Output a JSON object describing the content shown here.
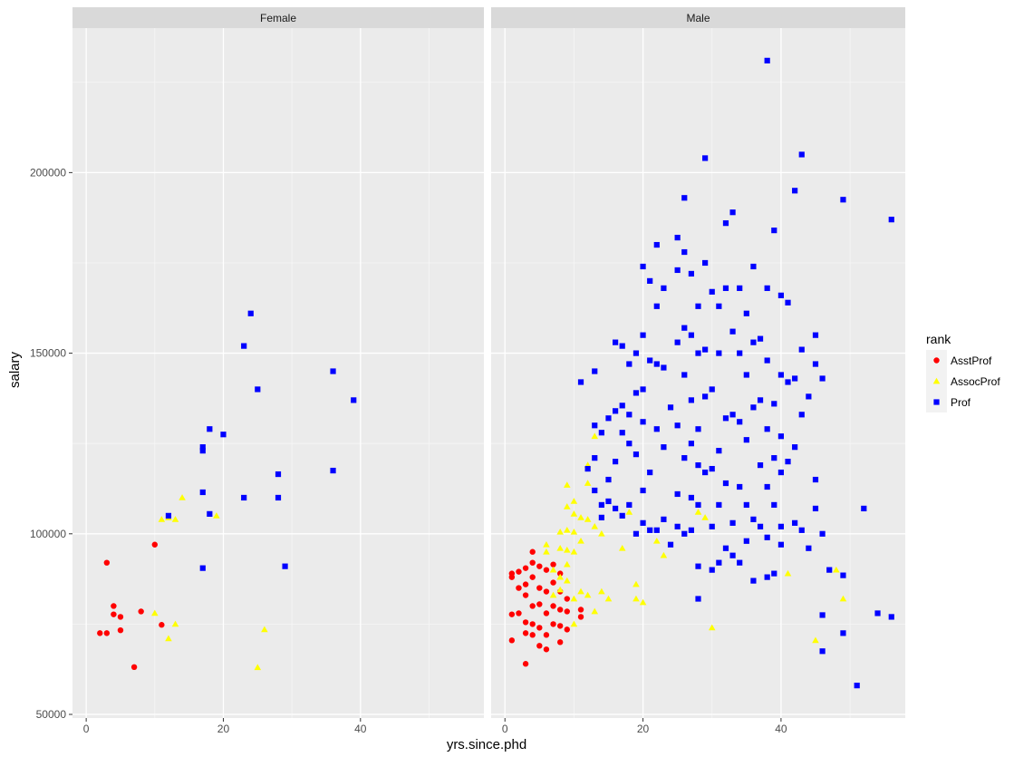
{
  "chart_data": {
    "type": "scatter",
    "title": "",
    "xlabel": "yrs.since.phd",
    "ylabel": "salary",
    "xlim": [
      -2,
      58
    ],
    "ylim": [
      49000,
      240000
    ],
    "x_ticks": [
      0,
      20,
      40
    ],
    "x_tick_labels": [
      "0",
      "20",
      "40"
    ],
    "y_ticks": [
      50000,
      100000,
      150000,
      200000
    ],
    "y_tick_labels": [
      "50000",
      "100000",
      "150000",
      "200000"
    ],
    "grid": true,
    "legend_position": "right",
    "legend_title": "rank",
    "panels": [
      "Female",
      "Male"
    ],
    "series": [
      {
        "name": "AsstProf",
        "color": "#ff0000",
        "shape": "circle"
      },
      {
        "name": "AssocProf",
        "color": "#ffff00",
        "shape": "triangle"
      },
      {
        "name": "Prof",
        "color": "#0000ff",
        "shape": "square"
      }
    ],
    "points": {
      "Female": {
        "AsstProf": [
          [
            2,
            72500
          ],
          [
            3,
            72500
          ],
          [
            3,
            92000
          ],
          [
            4,
            80000
          ],
          [
            4,
            77700
          ],
          [
            5,
            77000
          ],
          [
            5,
            73300
          ],
          [
            7,
            63100
          ],
          [
            8,
            78500
          ],
          [
            10,
            97000
          ],
          [
            11,
            74800
          ]
        ],
        "AssocProf": [
          [
            10,
            78000
          ],
          [
            11,
            104000
          ],
          [
            12,
            104500
          ],
          [
            12,
            71000
          ],
          [
            13,
            104000
          ],
          [
            13,
            75000
          ],
          [
            14,
            110000
          ],
          [
            19,
            105000
          ],
          [
            25,
            63000
          ],
          [
            26,
            73500
          ]
        ],
        "Prof": [
          [
            12,
            105000
          ],
          [
            17,
            124000
          ],
          [
            17,
            123000
          ],
          [
            17,
            111500
          ],
          [
            17,
            90500
          ],
          [
            18,
            129000
          ],
          [
            18,
            105500
          ],
          [
            20,
            127500
          ],
          [
            23,
            152000
          ],
          [
            23,
            110000
          ],
          [
            24,
            161000
          ],
          [
            25,
            140000
          ],
          [
            28,
            116500
          ],
          [
            28,
            110000
          ],
          [
            29,
            91000
          ],
          [
            36,
            145000
          ],
          [
            36,
            117500
          ],
          [
            39,
            137000
          ]
        ]
      },
      "Male": {
        "AsstProf": [
          [
            1,
            88000
          ],
          [
            1,
            77700
          ],
          [
            1,
            70500
          ],
          [
            1,
            89000
          ],
          [
            2,
            78000
          ],
          [
            2,
            89500
          ],
          [
            2,
            85000
          ],
          [
            3,
            64000
          ],
          [
            3,
            75500
          ],
          [
            3,
            72500
          ],
          [
            3,
            83000
          ],
          [
            3,
            86000
          ],
          [
            3,
            90500
          ],
          [
            4,
            95000
          ],
          [
            4,
            92000
          ],
          [
            4,
            88000
          ],
          [
            4,
            80000
          ],
          [
            4,
            75000
          ],
          [
            4,
            72000
          ],
          [
            5,
            91000
          ],
          [
            5,
            85000
          ],
          [
            5,
            80500
          ],
          [
            5,
            74000
          ],
          [
            5,
            69000
          ],
          [
            6,
            90000
          ],
          [
            6,
            84000
          ],
          [
            6,
            78000
          ],
          [
            6,
            72000
          ],
          [
            6,
            68000
          ],
          [
            7,
            91500
          ],
          [
            7,
            86500
          ],
          [
            7,
            80000
          ],
          [
            7,
            75000
          ],
          [
            8,
            89000
          ],
          [
            8,
            84000
          ],
          [
            8,
            79000
          ],
          [
            8,
            74500
          ],
          [
            8,
            70000
          ],
          [
            9,
            73500
          ],
          [
            9,
            78500
          ],
          [
            9,
            82000
          ],
          [
            11,
            77000
          ],
          [
            11,
            79000
          ]
        ],
        "AssocProf": [
          [
            6,
            97000
          ],
          [
            6,
            95000
          ],
          [
            7,
            90000
          ],
          [
            7,
            83000
          ],
          [
            8,
            100500
          ],
          [
            8,
            96000
          ],
          [
            8,
            88000
          ],
          [
            8,
            84500
          ],
          [
            9,
            113500
          ],
          [
            9,
            107500
          ],
          [
            9,
            101000
          ],
          [
            9,
            95500
          ],
          [
            9,
            91500
          ],
          [
            9,
            87000
          ],
          [
            10,
            109000
          ],
          [
            10,
            105500
          ],
          [
            10,
            100500
          ],
          [
            10,
            95000
          ],
          [
            10,
            82000
          ],
          [
            10,
            75000
          ],
          [
            11,
            104500
          ],
          [
            11,
            98000
          ],
          [
            11,
            84000
          ],
          [
            12,
            119000
          ],
          [
            12,
            114000
          ],
          [
            12,
            104000
          ],
          [
            12,
            83000
          ],
          [
            13,
            127000
          ],
          [
            13,
            102000
          ],
          [
            13,
            78500
          ],
          [
            14,
            100000
          ],
          [
            14,
            84000
          ],
          [
            15,
            82000
          ],
          [
            17,
            96000
          ],
          [
            18,
            106000
          ],
          [
            19,
            86000
          ],
          [
            19,
            82000
          ],
          [
            20,
            81000
          ],
          [
            22,
            98000
          ],
          [
            23,
            94000
          ],
          [
            28,
            106000
          ],
          [
            29,
            104500
          ],
          [
            30,
            74000
          ],
          [
            41,
            89000
          ],
          [
            45,
            70500
          ],
          [
            48,
            90000
          ],
          [
            49,
            82000
          ]
        ],
        "Prof": [
          [
            11,
            142000
          ],
          [
            12,
            118000
          ],
          [
            13,
            145000
          ],
          [
            13,
            130000
          ],
          [
            13,
            121000
          ],
          [
            13,
            112000
          ],
          [
            14,
            128000
          ],
          [
            14,
            108000
          ],
          [
            14,
            104500
          ],
          [
            15,
            132000
          ],
          [
            15,
            115000
          ],
          [
            15,
            109000
          ],
          [
            16,
            153000
          ],
          [
            16,
            134000
          ],
          [
            16,
            120000
          ],
          [
            16,
            107000
          ],
          [
            17,
            152000
          ],
          [
            17,
            135500
          ],
          [
            17,
            128000
          ],
          [
            17,
            105000
          ],
          [
            18,
            147000
          ],
          [
            18,
            133000
          ],
          [
            18,
            125000
          ],
          [
            18,
            108000
          ],
          [
            19,
            150000
          ],
          [
            19,
            139000
          ],
          [
            19,
            122000
          ],
          [
            19,
            100000
          ],
          [
            20,
            174000
          ],
          [
            20,
            155000
          ],
          [
            20,
            140000
          ],
          [
            20,
            131000
          ],
          [
            20,
            112000
          ],
          [
            20,
            103000
          ],
          [
            21,
            170000
          ],
          [
            21,
            148000
          ],
          [
            21,
            117000
          ],
          [
            21,
            101000
          ],
          [
            22,
            180000
          ],
          [
            22,
            163000
          ],
          [
            22,
            147000
          ],
          [
            22,
            129000
          ],
          [
            22,
            101000
          ],
          [
            23,
            168000
          ],
          [
            23,
            146000
          ],
          [
            23,
            124000
          ],
          [
            23,
            104000
          ],
          [
            24,
            135000
          ],
          [
            24,
            97000
          ],
          [
            25,
            182000
          ],
          [
            25,
            173000
          ],
          [
            25,
            153000
          ],
          [
            25,
            130000
          ],
          [
            25,
            111000
          ],
          [
            25,
            102000
          ],
          [
            26,
            193000
          ],
          [
            26,
            178000
          ],
          [
            26,
            157000
          ],
          [
            26,
            144000
          ],
          [
            26,
            121000
          ],
          [
            26,
            100000
          ],
          [
            27,
            172000
          ],
          [
            27,
            155000
          ],
          [
            27,
            137000
          ],
          [
            27,
            125000
          ],
          [
            27,
            110000
          ],
          [
            27,
            101000
          ],
          [
            28,
            163000
          ],
          [
            28,
            150000
          ],
          [
            28,
            129000
          ],
          [
            28,
            119000
          ],
          [
            28,
            108000
          ],
          [
            28,
            91000
          ],
          [
            28,
            82000
          ],
          [
            29,
            204000
          ],
          [
            29,
            175000
          ],
          [
            29,
            151000
          ],
          [
            29,
            138000
          ],
          [
            29,
            117000
          ],
          [
            30,
            167000
          ],
          [
            30,
            140000
          ],
          [
            30,
            118000
          ],
          [
            30,
            102000
          ],
          [
            30,
            90000
          ],
          [
            31,
            163000
          ],
          [
            31,
            150000
          ],
          [
            31,
            123000
          ],
          [
            31,
            108000
          ],
          [
            31,
            92000
          ],
          [
            32,
            186000
          ],
          [
            32,
            168000
          ],
          [
            32,
            132000
          ],
          [
            32,
            114000
          ],
          [
            32,
            96000
          ],
          [
            33,
            189000
          ],
          [
            33,
            156000
          ],
          [
            33,
            133000
          ],
          [
            33,
            103000
          ],
          [
            33,
            94000
          ],
          [
            34,
            168000
          ],
          [
            34,
            150000
          ],
          [
            34,
            131000
          ],
          [
            34,
            113000
          ],
          [
            34,
            92000
          ],
          [
            35,
            161000
          ],
          [
            35,
            144000
          ],
          [
            35,
            126000
          ],
          [
            35,
            108000
          ],
          [
            35,
            98000
          ],
          [
            36,
            174000
          ],
          [
            36,
            153000
          ],
          [
            36,
            135000
          ],
          [
            36,
            104000
          ],
          [
            36,
            87000
          ],
          [
            37,
            154000
          ],
          [
            37,
            137000
          ],
          [
            37,
            119000
          ],
          [
            37,
            102000
          ],
          [
            38,
            231000
          ],
          [
            38,
            168000
          ],
          [
            38,
            148000
          ],
          [
            38,
            129000
          ],
          [
            38,
            113000
          ],
          [
            38,
            99000
          ],
          [
            38,
            88000
          ],
          [
            39,
            184000
          ],
          [
            39,
            136000
          ],
          [
            39,
            121000
          ],
          [
            39,
            108000
          ],
          [
            39,
            89000
          ],
          [
            40,
            166000
          ],
          [
            40,
            144000
          ],
          [
            40,
            127000
          ],
          [
            40,
            117000
          ],
          [
            40,
            102000
          ],
          [
            40,
            97000
          ],
          [
            41,
            164000
          ],
          [
            41,
            142000
          ],
          [
            41,
            120000
          ],
          [
            42,
            195000
          ],
          [
            42,
            143000
          ],
          [
            42,
            124000
          ],
          [
            42,
            103000
          ],
          [
            43,
            205000
          ],
          [
            43,
            151000
          ],
          [
            43,
            133000
          ],
          [
            43,
            101000
          ],
          [
            44,
            138000
          ],
          [
            44,
            96000
          ],
          [
            45,
            155000
          ],
          [
            45,
            147000
          ],
          [
            45,
            115000
          ],
          [
            45,
            107000
          ],
          [
            46,
            143000
          ],
          [
            46,
            100000
          ],
          [
            46,
            77500
          ],
          [
            46,
            67500
          ],
          [
            47,
            90000
          ],
          [
            49,
            192500
          ],
          [
            49,
            88500
          ],
          [
            49,
            72500
          ],
          [
            51,
            58000
          ],
          [
            52,
            107000
          ],
          [
            54,
            78000
          ],
          [
            56,
            187000
          ],
          [
            56,
            77000
          ]
        ]
      }
    }
  }
}
